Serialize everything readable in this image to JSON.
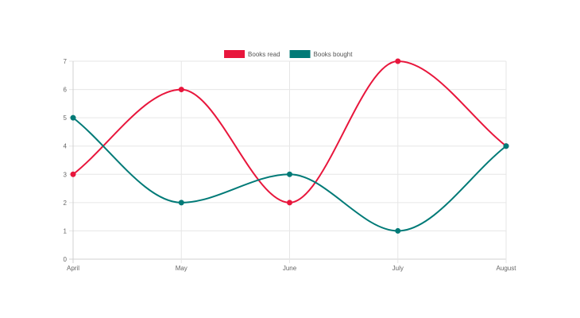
{
  "chart_data": {
    "type": "line",
    "title": "",
    "xlabel": "",
    "ylabel": "",
    "categories": [
      "April",
      "May",
      "June",
      "July",
      "August"
    ],
    "series": [
      {
        "name": "Books read",
        "values": [
          3,
          6,
          2,
          7,
          4
        ],
        "color": "#e8163c"
      },
      {
        "name": "Books bought",
        "values": [
          5,
          2,
          3,
          1,
          4
        ],
        "color": "#007a77"
      }
    ],
    "ylim": [
      0,
      7
    ],
    "yticks": [
      0,
      1,
      2,
      3,
      4,
      5,
      6,
      7
    ],
    "grid": true,
    "curve": "smooth",
    "legend_position": "top-center"
  }
}
